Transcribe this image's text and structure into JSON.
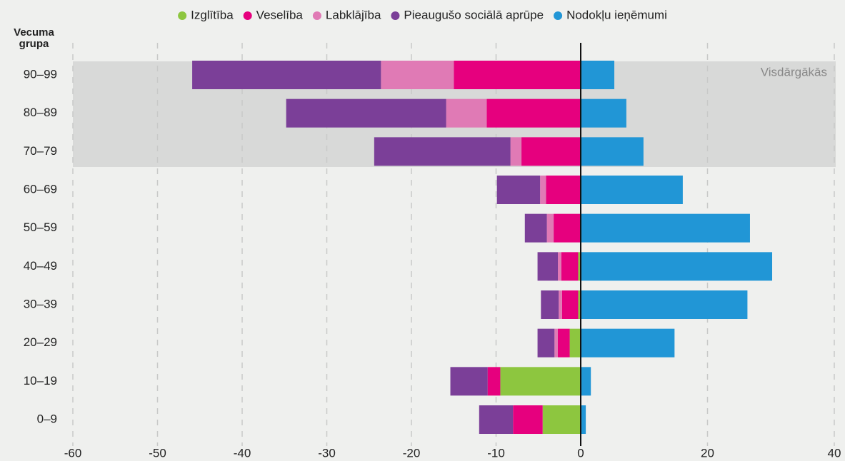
{
  "chart_data": [
    {
      "type": "bar",
      "orientation": "horizontal",
      "stacked": true,
      "y_label": "Vecuma grupa",
      "annotation": "Visdārgākās",
      "categories": [
        "90–99",
        "80–89",
        "70–79",
        "60–69",
        "50–59",
        "40–49",
        "30–39",
        "20–29",
        "10–19",
        "0–9"
      ],
      "xlim": [
        -60,
        0
      ],
      "xticks": [
        -60,
        -50,
        -40,
        -30,
        -20,
        -10,
        0
      ],
      "grid": true,
      "series": [
        {
          "name": "Izglītība",
          "color": "#8dc63f",
          "values": [
            0,
            0,
            0,
            0,
            0,
            -0.3,
            -0.3,
            -1.3,
            -9.5,
            -4.5
          ]
        },
        {
          "name": "Veselība",
          "color": "#e6007e",
          "values": [
            -15.0,
            -11.1,
            -7.0,
            -4.1,
            -3.2,
            -2.0,
            -1.9,
            -1.4,
            -1.5,
            -3.5
          ]
        },
        {
          "name": "Labklājība",
          "color": "#e07ab5",
          "values": [
            -8.6,
            -4.8,
            -1.3,
            -0.7,
            -0.8,
            -0.4,
            -0.4,
            -0.4,
            0,
            0
          ]
        },
        {
          "name": "Pieaugušo sociālā aprūpe",
          "color": "#7b3f98",
          "values": [
            -22.3,
            -18.9,
            -16.1,
            -5.1,
            -2.6,
            -2.4,
            -2.1,
            -2.0,
            -4.4,
            -4.0
          ]
        }
      ]
    },
    {
      "type": "bar",
      "orientation": "horizontal",
      "stacked": true,
      "xlim": [
        0,
        40
      ],
      "xticks": [
        20,
        40
      ],
      "grid": true,
      "series": [
        {
          "name": "Nodokļu ieņēmumi",
          "color": "#2196d6",
          "values": [
            5.3,
            7.2,
            9.9,
            16.1,
            26.7,
            30.2,
            26.3,
            14.8,
            1.6,
            0.8
          ]
        }
      ]
    }
  ]
}
